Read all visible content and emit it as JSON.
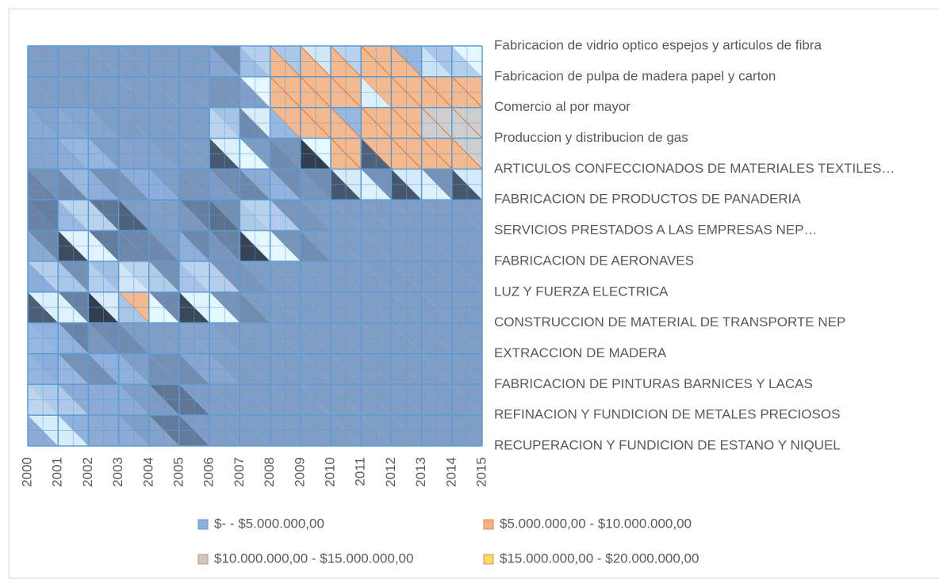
{
  "chart_data": {
    "type": "surface",
    "categories": [
      "2000",
      "2001",
      "2002",
      "2003",
      "2004",
      "2005",
      "2006",
      "2007",
      "2008",
      "2009",
      "2010",
      "2011",
      "2012",
      "2013",
      "2014",
      "2015"
    ],
    "series": [
      {
        "name": "Fabricacion de vidrio optico  espejos y articulos  de fibra",
        "values": [
          2100000,
          2100000,
          2100000,
          2100000,
          2100000,
          2100000,
          2100000,
          1500000,
          2400000,
          1500000,
          3200000,
          2500000,
          6500000,
          2800000,
          1600000,
          6000000
        ]
      },
      {
        "name": "Fabricacion de pulpa de madera papel y carton",
        "values": [
          2100000,
          2100000,
          2100000,
          2100000,
          2100000,
          2100000,
          2100000,
          2100000,
          6200000,
          6800000,
          7000000,
          6000000,
          6500000,
          2200000,
          6500000,
          6500000
        ]
      },
      {
        "name": "Comercio al por mayor",
        "values": [
          2100000,
          2100000,
          2100000,
          2100000,
          2100000,
          2100000,
          2100000,
          1500000,
          6500000,
          8500000,
          9500000,
          2500000,
          6000000,
          9000000,
          9500000,
          6000000
        ]
      },
      {
        "name": "Produccion y distribucion de  gas",
        "values": [
          2600000,
          2400000,
          2600000,
          2100000,
          2100000,
          2100000,
          2100000,
          6500000,
          1500000,
          2100000,
          11000000,
          2500000,
          11000000,
          12000000,
          16000000,
          16000000
        ]
      },
      {
        "name": "ARTICULOS CONFECCIONADOS DE MATERIALES TEXTILES…",
        "values": [
          2000000,
          2000000,
          3000000,
          2100000,
          2400000,
          2100000,
          2100000,
          1500000,
          2600000,
          1500000,
          1500000,
          6000000,
          1500000,
          6000000,
          1500000,
          6000000
        ]
      },
      {
        "name": "FABRICACION DE PRODUCTOS DE PANADERIA",
        "values": [
          1200000,
          1500000,
          2400000,
          1200000,
          2600000,
          2100000,
          1500000,
          2100000,
          2100000,
          2100000,
          2100000,
          2100000,
          2100000,
          2100000,
          2100000,
          2100000
        ]
      },
      {
        "name": "SERVICIOS PRESTADOS A LAS EMPRESAS NEP…",
        "values": [
          2400000,
          1200000,
          6500000,
          1200000,
          1200000,
          2100000,
          1200000,
          1200000,
          6800000,
          1500000,
          2100000,
          2100000,
          2100000,
          2100000,
          2100000,
          2100000
        ]
      },
      {
        "name": "FABRICACION DE AERONAVES",
        "values": [
          1200000,
          2400000,
          2100000,
          1200000,
          2400000,
          2100000,
          2400000,
          2100000,
          2100000,
          2100000,
          2100000,
          2100000,
          2100000,
          2100000,
          2100000,
          2100000
        ]
      },
      {
        "name": "LUZ Y FUERZA ELECTRICA",
        "values": [
          1200000,
          6000000,
          1200000,
          6500000,
          6500000,
          1200000,
          6500000,
          1500000,
          2100000,
          2100000,
          2100000,
          2100000,
          2100000,
          2100000,
          2100000,
          2100000
        ]
      },
      {
        "name": "CONSTRUCCION DE MATERIAL DE TRANSPORTE NEP",
        "values": [
          2600000,
          2600000,
          1500000,
          1200000,
          2100000,
          2100000,
          2100000,
          2100000,
          2100000,
          2100000,
          2100000,
          2100000,
          2100000,
          2100000,
          2100000,
          2100000
        ]
      },
      {
        "name": "EXTRACCION DE MADERA",
        "values": [
          3000000,
          2600000,
          1500000,
          2600000,
          2100000,
          2100000,
          2400000,
          2100000,
          2100000,
          2100000,
          2100000,
          2100000,
          2100000,
          2100000,
          2100000,
          2100000
        ]
      },
      {
        "name": "FABRICACION DE PINTURAS BARNICES Y LACAS",
        "values": [
          2600000,
          2100000,
          2400000,
          2400000,
          2100000,
          1200000,
          2100000,
          2100000,
          2100000,
          2100000,
          2100000,
          2100000,
          2100000,
          2100000,
          2100000,
          2100000
        ]
      },
      {
        "name": "REFINACION Y FUNDICION DE METALES PRECIOSOS",
        "values": [
          2400000,
          6000000,
          2400000,
          2400000,
          2100000,
          1200000,
          2100000,
          2100000,
          2100000,
          2100000,
          2100000,
          2100000,
          2100000,
          2100000,
          2100000,
          2100000
        ]
      },
      {
        "name": "RECUPERACION Y FUNDICION DE ESTANO Y NIQUEL",
        "values": [
          6000000,
          2100000,
          2400000,
          2400000,
          2100000,
          1500000,
          2100000,
          2100000,
          2100000,
          2100000,
          2100000,
          2100000,
          2100000,
          2100000,
          2100000,
          2100000
        ]
      }
    ],
    "bands": [
      {
        "label": "$-   - $5.000.000,00",
        "from": 0,
        "to": 5000000,
        "color": "#8fb0dc"
      },
      {
        "label": "$5.000.000,00 - $10.000.000,00",
        "from": 5000000,
        "to": 10000000,
        "color": "#f4b183"
      },
      {
        "label": "$10.000.000,00 - $15.000.000,00",
        "from": 10000000,
        "to": 15000000,
        "color": "#c9c9c9"
      },
      {
        "label": "$15.000.000,00 - $20.000.000,00",
        "from": 15000000,
        "to": 20000000,
        "color": "#ffd966"
      }
    ]
  }
}
